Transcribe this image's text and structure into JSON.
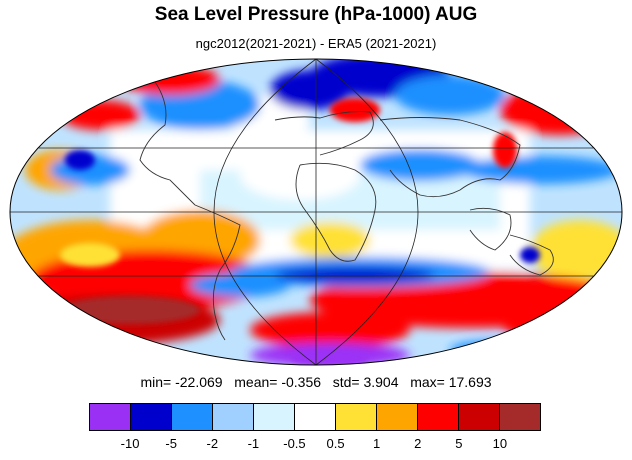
{
  "title": "Sea Level Pressure (hPa-1000) AUG",
  "subtitle": "ngc2012(2021-2021) - ERA5 (2021-2021)",
  "stats": {
    "min_label": "min=",
    "min": "-22.069",
    "mean_label": "mean=",
    "mean": "-0.356",
    "std_label": "std=",
    "std": "3.904",
    "max_label": "max=",
    "max": "17.693"
  },
  "map": {
    "projection": "mollweide",
    "fields": [
      "ngc2012(2021-2021)",
      "ERA5 (2021-2021)"
    ]
  },
  "colorbar": {
    "colors": [
      "#9b30f5",
      "#0000cd",
      "#1e90ff",
      "#a0d0ff",
      "#d8f4ff",
      "#ffffff",
      "#ffe135",
      "#ffa500",
      "#ff0000",
      "#cc0000",
      "#a52a2a"
    ],
    "tick_labels": [
      "-10",
      "-5",
      "-2",
      "-1",
      "-0.5",
      "0.5",
      "1",
      "2",
      "5",
      "10"
    ]
  }
}
